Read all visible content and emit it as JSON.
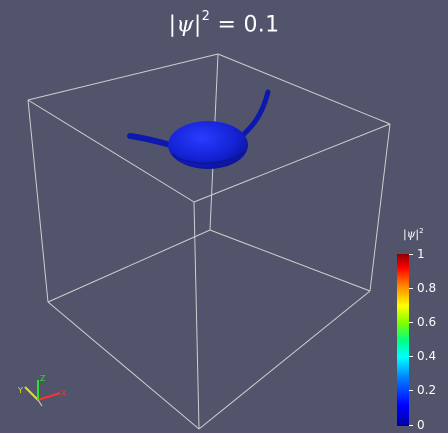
{
  "title": {
    "lhs_left": "|",
    "lhs_symbol": "ψ",
    "lhs_right": "|",
    "exponent": "2",
    "equals": "=",
    "value": "0.1"
  },
  "colorbar": {
    "title_left": "|",
    "title_symbol": "ψ",
    "title_right": "|",
    "title_exponent": "2",
    "ticks": [
      "1",
      "0.8",
      "0.6",
      "0.4",
      "0.2",
      "0"
    ],
    "range": [
      0,
      1
    ],
    "colormap": "rainbow",
    "colors": [
      "#0000a0",
      "#0000ff",
      "#00ffff",
      "#00ff80",
      "#ffff00",
      "#ff0000",
      "#8b0000"
    ]
  },
  "axes_triad": {
    "x_label": "X",
    "y_label": "Y",
    "z_label": "Z",
    "x_color": "#ff3030",
    "y_color": "#e0e020",
    "z_color": "#30e030"
  },
  "scene": {
    "background_color": "#51546a",
    "isosurface_color": "#1423d6",
    "box_color": "#d8d8d8"
  }
}
